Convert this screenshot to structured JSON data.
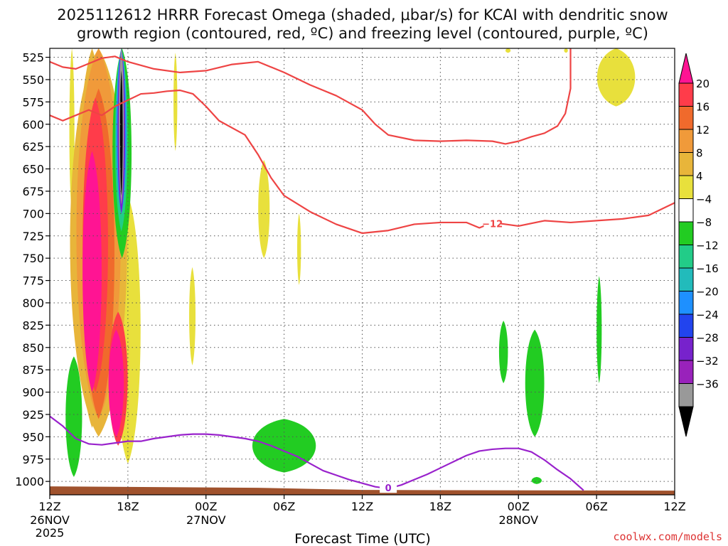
{
  "chart_data": {
    "type": "heatmap",
    "title_line1": "2025112612 HRRR Forecast Omega (shaded, μbar/s) for KCAI with dendritic snow",
    "title_line2": "growth region (contoured, red, ºC) and freezing level (contoured, purple, ºC)",
    "xlabel": "Forecast Time (UTC)",
    "ylabel": "",
    "credit": "coolwx.com/models",
    "x_range_hours": [
      0,
      48
    ],
    "y_range_hpa": [
      515,
      1015
    ],
    "grid": "dotted",
    "x_ticks": [
      {
        "hour": 0,
        "label": "12Z",
        "sub": "26NOV",
        "sub2": "2025"
      },
      {
        "hour": 6,
        "label": "18Z",
        "sub": "",
        "sub2": ""
      },
      {
        "hour": 12,
        "label": "00Z",
        "sub": "27NOV",
        "sub2": ""
      },
      {
        "hour": 18,
        "label": "06Z",
        "sub": "",
        "sub2": ""
      },
      {
        "hour": 24,
        "label": "12Z",
        "sub": "",
        "sub2": ""
      },
      {
        "hour": 30,
        "label": "18Z",
        "sub": "",
        "sub2": ""
      },
      {
        "hour": 36,
        "label": "00Z",
        "sub": "28NOV",
        "sub2": ""
      },
      {
        "hour": 42,
        "label": "06Z",
        "sub": "",
        "sub2": ""
      },
      {
        "hour": 48,
        "label": "12Z",
        "sub": "",
        "sub2": ""
      }
    ],
    "y_ticks": [
      525,
      550,
      575,
      600,
      625,
      650,
      675,
      700,
      725,
      750,
      775,
      800,
      825,
      850,
      875,
      900,
      925,
      950,
      975,
      1000
    ],
    "colorbar": {
      "labels": [
        "20",
        "16",
        "12",
        "8",
        "4",
        "−4",
        "−8",
        "−12",
        "−16",
        "−20",
        "−24",
        "−28",
        "−32",
        "−36"
      ],
      "colors_top_to_bottom": [
        "#ff3c4a",
        "#f06a2c",
        "#f09a3a",
        "#e8b53a",
        "#e8e03c",
        "#ffffff",
        "#22cc22",
        "#22cc88",
        "#22bbbb",
        "#1e90ff",
        "#2244ee",
        "#7722cc",
        "#9922bb",
        "#999999"
      ],
      "top_arrow_color": "#ff1493",
      "bottom_arrow_color": "#000000"
    },
    "series": [
      {
        "name": "dendritic snow growth region (-12 °C, upper)",
        "color": "#ee4444",
        "points": [
          [
            0,
            530
          ],
          [
            1,
            536
          ],
          [
            2,
            538
          ],
          [
            3,
            532
          ],
          [
            4,
            526
          ],
          [
            5,
            524
          ],
          [
            6,
            530
          ],
          [
            8,
            538
          ],
          [
            10,
            542
          ],
          [
            12,
            540
          ],
          [
            14,
            533
          ],
          [
            16,
            530
          ],
          [
            18,
            542
          ],
          [
            20,
            556
          ],
          [
            22,
            568
          ],
          [
            24,
            584
          ],
          [
            25,
            600
          ],
          [
            26,
            612
          ],
          [
            28,
            618
          ],
          [
            30,
            619
          ],
          [
            32,
            618
          ],
          [
            34,
            619
          ],
          [
            35,
            622
          ],
          [
            36,
            619
          ],
          [
            37,
            614
          ],
          [
            38,
            610
          ],
          [
            39,
            602
          ],
          [
            39.6,
            588
          ],
          [
            40,
            560
          ],
          [
            40,
            515
          ]
        ],
        "label_text": "",
        "label_at": null
      },
      {
        "name": "dendritic snow growth region (-12 °C, lower)",
        "color": "#ee4444",
        "points": [
          [
            0,
            590
          ],
          [
            1,
            596
          ],
          [
            2,
            590
          ],
          [
            3,
            584
          ],
          [
            4,
            590
          ],
          [
            5,
            580
          ],
          [
            6,
            573
          ],
          [
            7,
            566
          ],
          [
            8,
            565
          ],
          [
            9,
            563
          ],
          [
            10,
            562
          ],
          [
            11,
            566
          ],
          [
            12,
            580
          ],
          [
            13,
            596
          ],
          [
            15,
            612
          ],
          [
            16,
            634
          ],
          [
            17,
            660
          ],
          [
            18,
            680
          ],
          [
            20,
            698
          ],
          [
            22,
            712
          ],
          [
            24,
            722
          ],
          [
            26,
            719
          ],
          [
            28,
            712
          ],
          [
            30,
            710
          ],
          [
            32,
            710
          ],
          [
            33,
            716
          ],
          [
            34,
            710
          ],
          [
            36,
            714
          ],
          [
            38,
            708
          ],
          [
            40,
            710
          ],
          [
            42,
            708
          ],
          [
            44,
            706
          ],
          [
            46,
            702
          ],
          [
            48,
            688
          ]
        ],
        "label_text": "−12",
        "label_at": [
          34,
          712
        ]
      },
      {
        "name": "freezing level (0 °C)",
        "color": "#9922cc",
        "points": [
          [
            0,
            927
          ],
          [
            1,
            938
          ],
          [
            2,
            952
          ],
          [
            3,
            958
          ],
          [
            4,
            959
          ],
          [
            5,
            957
          ],
          [
            6,
            955
          ],
          [
            7,
            955
          ],
          [
            8,
            952
          ],
          [
            9,
            950
          ],
          [
            10,
            948
          ],
          [
            11,
            947
          ],
          [
            12,
            947
          ],
          [
            13,
            948
          ],
          [
            14,
            950
          ],
          [
            15,
            952
          ],
          [
            16,
            955
          ],
          [
            17,
            960
          ],
          [
            18,
            966
          ],
          [
            19,
            972
          ],
          [
            20,
            980
          ],
          [
            21,
            988
          ],
          [
            22,
            993
          ],
          [
            23,
            998
          ],
          [
            24,
            1002
          ],
          [
            25,
            1006
          ],
          [
            26,
            1008
          ],
          [
            27,
            1004
          ],
          [
            28,
            998
          ],
          [
            29,
            992
          ],
          [
            30,
            985
          ],
          [
            31,
            978
          ],
          [
            32,
            971
          ],
          [
            33,
            966
          ],
          [
            34,
            964
          ],
          [
            35,
            963
          ],
          [
            36,
            963
          ],
          [
            37,
            967
          ],
          [
            38,
            976
          ],
          [
            39,
            987
          ],
          [
            40,
            997
          ],
          [
            41,
            1010
          ]
        ],
        "label_text": "0",
        "label_at": [
          26,
          1008
        ]
      }
    ],
    "omega_regions": [
      {
        "color": "#e8e03c",
        "bands": [
          [
            1.5,
            1.9,
            515,
            700
          ],
          [
            5,
            7,
            680,
            980
          ],
          [
            9.5,
            9.8,
            520,
            630
          ],
          [
            10.7,
            11.2,
            760,
            870
          ],
          [
            16,
            16.9,
            640,
            750
          ],
          [
            19,
            19.3,
            700,
            780
          ],
          [
            35,
            35.4,
            515,
            520
          ],
          [
            39.5,
            39.8,
            515,
            520
          ],
          [
            42,
            45,
            515,
            580
          ]
        ]
      },
      {
        "color": "#e8b53a",
        "bands": [
          [
            1.5,
            6,
            515,
            950
          ],
          [
            2,
            4.5,
            515,
            940
          ]
        ]
      },
      {
        "color": "#f09a3a",
        "bands": [
          [
            2,
            5.5,
            515,
            930
          ]
        ]
      },
      {
        "color": "#f06a2c",
        "bands": [
          [
            2.5,
            5,
            560,
            930
          ]
        ]
      },
      {
        "color": "#ff3c4a",
        "bands": [
          [
            2.5,
            4.5,
            570,
            900
          ],
          [
            4.5,
            6,
            810,
            960
          ]
        ]
      },
      {
        "color": "#ff1493",
        "bands": [
          [
            2.5,
            4,
            630,
            900
          ],
          [
            4.5,
            5.7,
            830,
            950
          ]
        ]
      },
      {
        "color": "#22cc22",
        "bands": [
          [
            1.2,
            2.5,
            860,
            995
          ],
          [
            4.8,
            6.3,
            515,
            750
          ],
          [
            15.5,
            20.5,
            930,
            990
          ],
          [
            34.5,
            35.2,
            820,
            890
          ],
          [
            36.5,
            38,
            830,
            950
          ],
          [
            42,
            42.4,
            770,
            890
          ],
          [
            37,
            37.8,
            995,
            1003
          ]
        ]
      },
      {
        "color": "#22cc88",
        "bands": [
          [
            5,
            6,
            515,
            720
          ]
        ]
      },
      {
        "color": "#1e90ff",
        "bands": [
          [
            5.1,
            5.9,
            515,
            700
          ]
        ]
      },
      {
        "color": "#7722cc",
        "bands": [
          [
            5.2,
            5.8,
            515,
            700
          ]
        ]
      },
      {
        "color": "#999999",
        "bands": [
          [
            5.3,
            5.7,
            515,
            690
          ]
        ]
      },
      {
        "color": "#000000",
        "bands": [
          [
            5.4,
            5.6,
            540,
            680
          ]
        ]
      }
    ],
    "ground_color": "#a0522d"
  }
}
